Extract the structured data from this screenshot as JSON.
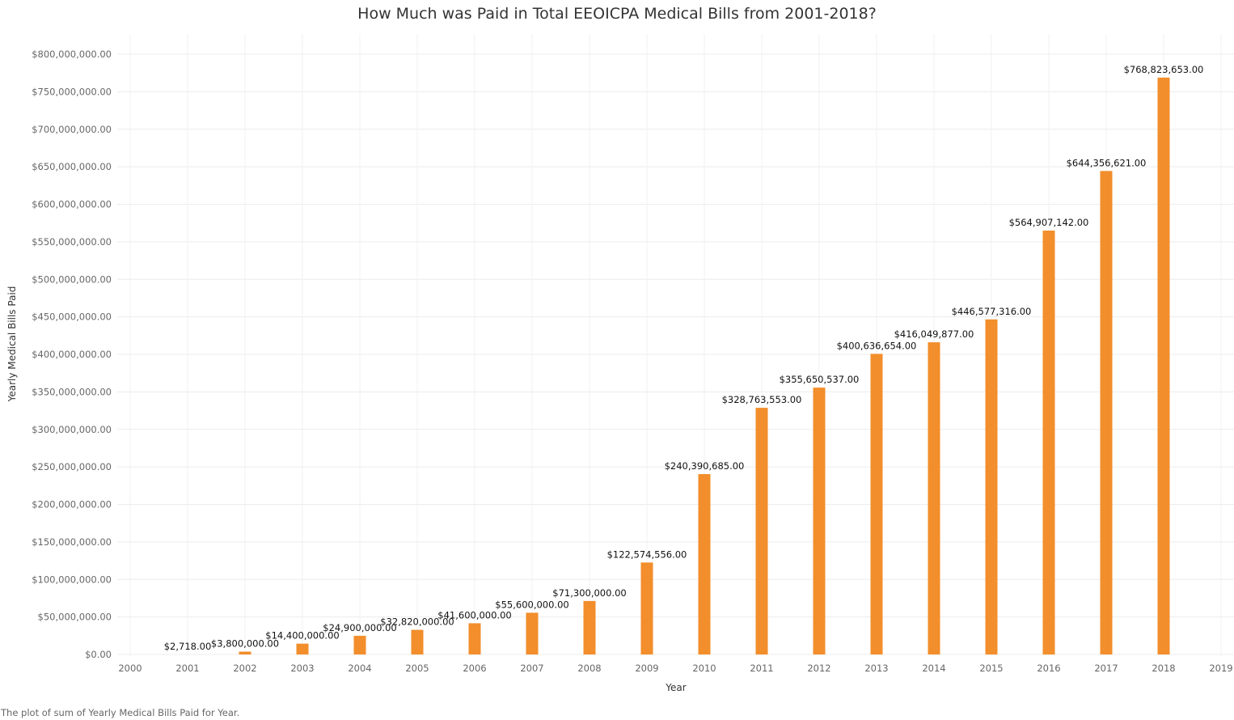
{
  "chart_data": {
    "type": "bar",
    "title": "How Much was Paid in Total EEOICPA Medical Bills from 2001-2018?",
    "caption": "The plot of sum of Yearly Medical Bills Paid for Year.",
    "xlabel": "Year",
    "ylabel": "Yearly Medical Bills Paid",
    "x_ticks": [
      "2000",
      "2001",
      "2002",
      "2003",
      "2004",
      "2005",
      "2006",
      "2007",
      "2008",
      "2009",
      "2010",
      "2011",
      "2012",
      "2013",
      "2014",
      "2015",
      "2016",
      "2017",
      "2018",
      "2019"
    ],
    "y_ticks": [
      "$0.00",
      "$50,000,000.00",
      "$100,000,000.00",
      "$150,000,000.00",
      "$200,000,000.00",
      "$250,000,000.00",
      "$300,000,000.00",
      "$350,000,000.00",
      "$400,000,000.00",
      "$450,000,000.00",
      "$500,000,000.00",
      "$550,000,000.00",
      "$600,000,000.00",
      "$650,000,000.00",
      "$700,000,000.00",
      "$750,000,000.00",
      "$800,000,000.00"
    ],
    "xlim": [
      2000,
      2019
    ],
    "ylim": [
      0,
      800000000
    ],
    "grid": true,
    "bar_color": "#F28E2B",
    "categories": [
      "2001",
      "2002",
      "2003",
      "2004",
      "2005",
      "2006",
      "2007",
      "2008",
      "2009",
      "2010",
      "2011",
      "2012",
      "2013",
      "2014",
      "2015",
      "2016",
      "2017",
      "2018"
    ],
    "values": [
      2718,
      3800000,
      14400000,
      24900000,
      32820000,
      41600000,
      55600000,
      71300000,
      122574556,
      240390685,
      328763553,
      355650537,
      400636654,
      416049877,
      446577316,
      564907142,
      644356621,
      768823653
    ],
    "data_labels": [
      "$2,718.00",
      "$3,800,000.00",
      "$14,400,000.00",
      "$24,900,000.00",
      "$32,820,000.00",
      "$41,600,000.00",
      "$55,600,000.00",
      "$71,300,000.00",
      "$122,574,556.00",
      "$240,390,685.00",
      "$328,763,553.00",
      "$355,650,537.00",
      "$400,636,654.00",
      "$416,049,877.00",
      "$446,577,316.00",
      "$564,907,142.00",
      "$644,356,621.00",
      "$768,823,653.00"
    ]
  }
}
